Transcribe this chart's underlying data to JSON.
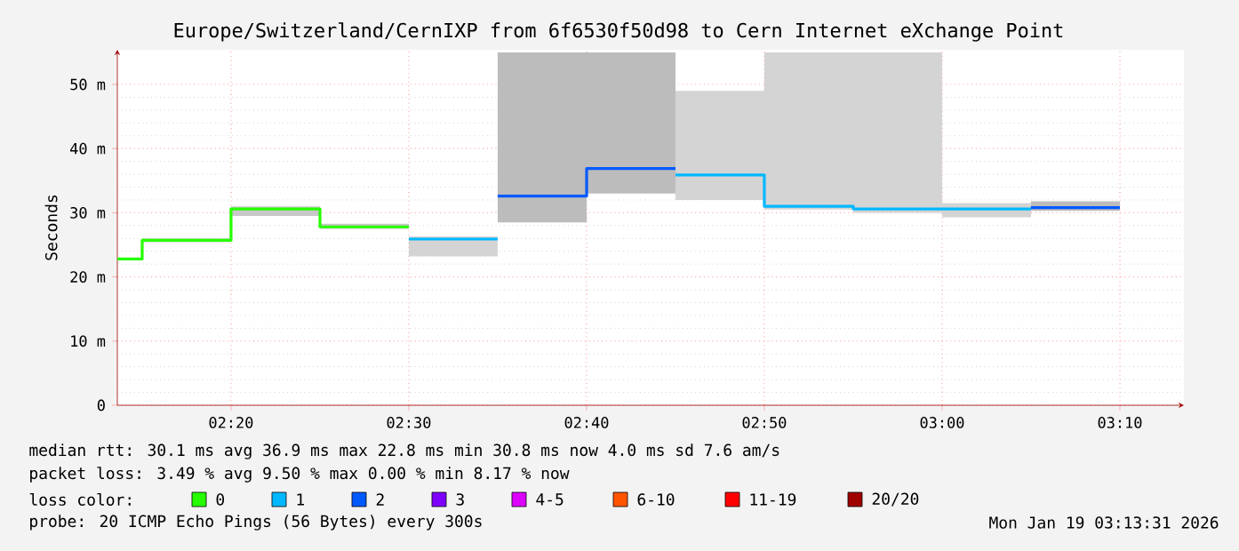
{
  "chart_data": {
    "type": "line",
    "title": "Europe/Switzerland/CernIXP from 6f6530f50d98 to Cern Internet eXchange Point",
    "ylabel": "Seconds",
    "legend_title": "loss color:",
    "series": [
      {
        "name": "0",
        "color": "#26ff00",
        "x": [
          2.2267,
          2.25,
          2.25,
          2.3333,
          2.3333,
          2.4167,
          2.4167,
          2.5
        ],
        "values": [
          22.8,
          22.8,
          25.7,
          25.7,
          30.6,
          30.6,
          27.8,
          27.8
        ],
        "lower": [
          null,
          null,
          25.4,
          25.4,
          29.5,
          29.5,
          27.5,
          27.5
        ],
        "upper": [
          null,
          null,
          26.0,
          26.0,
          31.0,
          31.0,
          28.3,
          28.3
        ]
      },
      {
        "name": "1",
        "color": "#00b8ff",
        "x": [
          2.5,
          2.5833,
          2.6667,
          2.75,
          2.8333,
          2.8333,
          2.9167,
          2.9167,
          3.0,
          3.0,
          3.0833
        ],
        "values": [
          25.9,
          25.9,
          null,
          35.9,
          35.9,
          31.0,
          31.0,
          30.6,
          30.6,
          30.6,
          30.6
        ],
        "lower": [
          23.2,
          23.2,
          null,
          32.0,
          32.0,
          30.5,
          30.5,
          30.0,
          30.0,
          29.3,
          29.3
        ],
        "upper": [
          26.3,
          26.3,
          null,
          49.0,
          49.0,
          55.0,
          55.0,
          55.0,
          55.0,
          31.5,
          31.5
        ]
      },
      {
        "name": "2",
        "color": "#0059ff",
        "x": [
          2.5833,
          2.6667,
          2.6667,
          2.75,
          2.9167,
          3.0833,
          3.1667
        ],
        "values": [
          32.6,
          32.6,
          36.9,
          36.9,
          null,
          30.8,
          30.8
        ],
        "lower": [
          28.5,
          28.5,
          33.0,
          33.0,
          null,
          30.3,
          30.3
        ],
        "upper": [
          55.0,
          55.0,
          55.0,
          55.0,
          null,
          31.8,
          31.8
        ]
      },
      {
        "name": "3",
        "color": "#7e00ff"
      },
      {
        "name": "4-5",
        "color": "#dd00ff"
      },
      {
        "name": "6-10",
        "color": "#ff5500"
      },
      {
        "name": "11-19",
        "color": "#ff0000"
      },
      {
        "name": "20/20",
        "color": "#a10000"
      }
    ],
    "xlim": [
      2.2267,
      3.2267
    ],
    "xticks": [
      {
        "value": 2.3333,
        "label": "02:20"
      },
      {
        "value": 2.5,
        "label": "02:30"
      },
      {
        "value": 2.6667,
        "label": "02:40"
      },
      {
        "value": 2.8333,
        "label": "02:50"
      },
      {
        "value": 3.0,
        "label": "03:00"
      },
      {
        "value": 3.1667,
        "label": "03:10"
      }
    ],
    "ylim": [
      0,
      55.4
    ],
    "yticks": [
      {
        "value": 0,
        "label": "0"
      },
      {
        "value": 10,
        "label": "10 m"
      },
      {
        "value": 20,
        "label": "20 m"
      },
      {
        "value": 30,
        "label": "30 m"
      },
      {
        "value": 40,
        "label": "40 m"
      },
      {
        "value": 50,
        "label": "50 m"
      }
    ],
    "grid": true,
    "legend": "bottom",
    "line_style": "solid",
    "annotations": [
      "median rtt:  30.1 ms avg  36.9 ms max  22.8 ms min  30.8 ms now  4.0 ms sd  7.6   am/s",
      "packet loss: 3.49 % avg  9.50 % max  0.00 % min  8.17 % now",
      "probe:        20 ICMP Echo Pings (56 Bytes) every 300s",
      "Mon Jan 19 03:13:31 2026"
    ]
  }
}
